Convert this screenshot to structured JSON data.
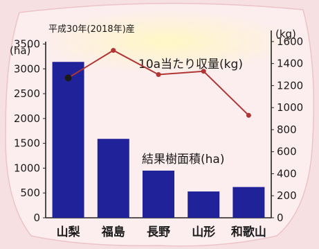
{
  "chart_data": {
    "type": "bar",
    "title": "平成30年(2018年)産",
    "categories": [
      "山梨",
      "福島",
      "長野",
      "山形",
      "和歌山"
    ],
    "series": [
      {
        "name": "結果樹面積(ha)",
        "kind": "bar",
        "axis": "left",
        "color": "#20229a",
        "values": [
          3140,
          1590,
          950,
          530,
          620
        ]
      },
      {
        "name": "10a当たり収量(kg)",
        "kind": "line",
        "axis": "right",
        "color": "#b03535",
        "values": [
          1270,
          1520,
          1300,
          1330,
          930
        ]
      }
    ],
    "y_left": {
      "unit": "(ha)",
      "range": [
        0,
        3800
      ],
      "ticks": [
        "0",
        "500",
        "1000",
        "1500",
        "2000",
        "2500",
        "3000",
        "3500"
      ]
    },
    "y_right": {
      "unit": "(kg)",
      "range": [
        0,
        1700
      ],
      "ticks": [
        "0",
        "200",
        "400",
        "600",
        "800",
        "1000",
        "1200",
        "1400",
        "1600"
      ]
    },
    "annotations": {
      "line_label": "10a当たり収量(kg)",
      "bar_label": "結果樹面積(ha)"
    },
    "grid": false,
    "background_colors": {
      "frame": "#f6dcde",
      "paper": "#fbecee",
      "glow": "#fdf2b6"
    }
  }
}
